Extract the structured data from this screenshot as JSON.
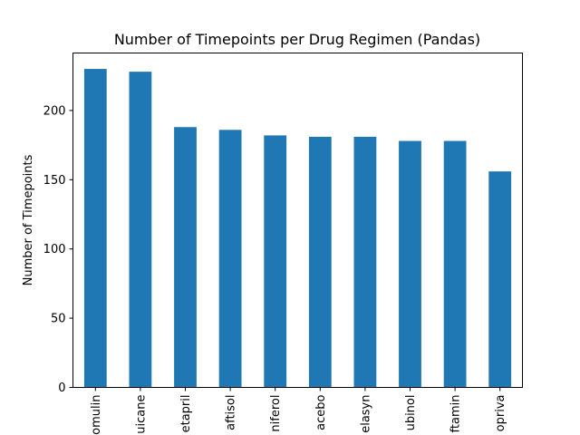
{
  "chart_data": {
    "type": "bar",
    "title": "Number of Timepoints per Drug Regimen (Pandas)",
    "xlabel": "",
    "ylabel": "Number of Timepoints",
    "categories": [
      "omulin",
      "uicane",
      "etapril",
      "aftisol",
      "niferol",
      "acebo",
      "elasyn",
      "ubinol",
      "ftamin",
      "opriva"
    ],
    "values": [
      230,
      228,
      188,
      186,
      182,
      181,
      181,
      178,
      178,
      156
    ],
    "yticks": [
      0,
      50,
      100,
      150,
      200
    ],
    "ylim": [
      0,
      241.5
    ],
    "grid": false,
    "legend": "none",
    "colors": {
      "bar": "#1f77b4"
    }
  }
}
